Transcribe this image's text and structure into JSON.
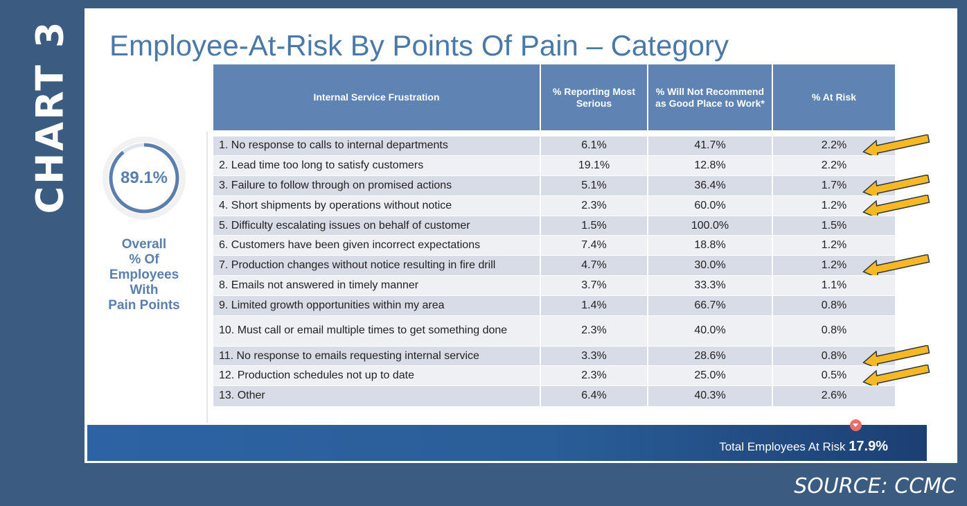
{
  "side_label": "CHART 3",
  "source": "SOURCE: CCMC",
  "chart_data": {
    "type": "table",
    "title": "Employee-At-Risk By Points Of Pain – Category",
    "columns": [
      "Internal Service Frustration",
      "% Reporting Most Serious",
      "% Will Not Recommend as Good Place to Work*",
      "% At Risk"
    ],
    "rows": [
      [
        "1. No response to calls to internal departments",
        "6.1%",
        "41.7%",
        "2.2%"
      ],
      [
        "2. Lead time too long to satisfy customers",
        "19.1%",
        "12.8%",
        "2.2%"
      ],
      [
        "3. Failure to follow through on promised actions",
        "5.1%",
        "36.4%",
        "1.7%"
      ],
      [
        "4. Short shipments by operations without notice",
        "2.3%",
        "60.0%",
        "1.2%"
      ],
      [
        "5. Difficulty escalating issues on behalf of customer",
        "1.5%",
        "100.0%",
        "1.5%"
      ],
      [
        "6. Customers have been given incorrect expectations",
        "7.4%",
        "18.8%",
        "1.2%"
      ],
      [
        "7. Production changes without notice resulting in fire drill",
        "4.7%",
        "30.0%",
        "1.2%"
      ],
      [
        "8. Emails not answered in timely manner",
        "3.7%",
        "33.3%",
        "1.1%"
      ],
      [
        "9. Limited growth opportunities within my area",
        "1.4%",
        "66.7%",
        "0.8%"
      ],
      [
        "10. Must call or email multiple times to get something done",
        "2.3%",
        "40.0%",
        "0.8%"
      ],
      [
        "11. No response to emails requesting internal service",
        "3.3%",
        "28.6%",
        "0.8%"
      ],
      [
        "12. Production schedules not up to date",
        "2.3%",
        "25.0%",
        "0.5%"
      ],
      [
        "13. Other",
        "6.4%",
        "40.3%",
        "2.6%"
      ]
    ],
    "highlighted_rows": [
      1,
      3,
      4,
      7,
      11,
      12
    ],
    "overall": {
      "value": "89.1%",
      "fraction": 0.891,
      "caption_lines": [
        "Overall",
        "% Of",
        "Employees",
        "With",
        "Pain Points"
      ]
    },
    "total": {
      "label": "Total Employees At Risk",
      "value": "17.9%"
    }
  },
  "colors": {
    "background": "#3c5b80",
    "header": "#5f84b4",
    "title": "#4a79a8",
    "row_shade": "#d8dce6",
    "row_light": "#eef0f4",
    "arrow": "#f6b824",
    "bar": "#2a5e98"
  }
}
